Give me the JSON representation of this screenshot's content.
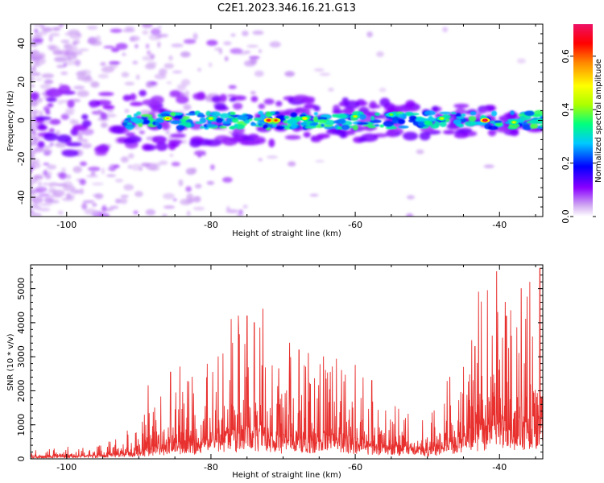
{
  "title": "C2E1.2023.346.16.21.G13",
  "chart_data": [
    {
      "type": "heatmap",
      "title": "C2E1.2023.346.16.21.G13",
      "xlabel": "Height of straight line (km)",
      "ylabel": "Frequency (Hz)",
      "xlim": [
        -105,
        -34
      ],
      "ylim": [
        -50,
        50
      ],
      "xticks": [
        "-100",
        "-80",
        "-60",
        "-40"
      ],
      "yticks": [
        "-40",
        "-20",
        "0",
        "20",
        "40"
      ],
      "colorbar": {
        "label": "Normalized spectral amplitude",
        "range": [
          0,
          0.72
        ],
        "ticks": [
          "0.0",
          "0.2",
          "0.4",
          "0.6"
        ]
      },
      "band": {
        "center_hz": 0,
        "half_width_hz": 5
      },
      "peaks": [
        {
          "x": -86,
          "y": 1,
          "z": 0.55
        },
        {
          "x": -80,
          "y": 1,
          "z": 0.45
        },
        {
          "x": -72,
          "y": 0,
          "z": 0.68
        },
        {
          "x": -71,
          "y": 0,
          "z": 0.62
        },
        {
          "x": -67,
          "y": 1,
          "z": 0.5
        },
        {
          "x": -60,
          "y": 2,
          "z": 0.45
        },
        {
          "x": -55,
          "y": 3,
          "z": 0.4
        },
        {
          "x": -48,
          "y": 1,
          "z": 0.45
        },
        {
          "x": -42,
          "y": 0,
          "z": 0.72
        },
        {
          "x": -38,
          "y": -1,
          "z": 0.45
        }
      ]
    },
    {
      "type": "line",
      "xlabel": "Height of straight line (km)",
      "ylabel": "SNR (10 * v/v)",
      "xlim": [
        -105,
        -34
      ],
      "ylim": [
        0,
        5700
      ],
      "xticks": [
        "-100",
        "-80",
        "-60",
        "-40"
      ],
      "yticks": [
        "0",
        "1000",
        "2000",
        "3000",
        "4000",
        "5000"
      ],
      "color": "#e8312f",
      "envelope": {
        "x": [
          -105,
          -98,
          -95,
          -93,
          -90,
          -88,
          -85,
          -82,
          -79,
          -77,
          -75,
          -73,
          -71,
          -68,
          -65,
          -62,
          -58,
          -55,
          -52,
          -50,
          -47,
          -45,
          -43,
          -41,
          -39,
          -37,
          -36,
          -35,
          -34
        ],
        "y": [
          300,
          400,
          500,
          700,
          1100,
          1700,
          2200,
          2400,
          3700,
          3800,
          4000,
          4000,
          2800,
          3300,
          3100,
          3000,
          2300,
          1600,
          1500,
          1300,
          2400,
          3000,
          4500,
          5200,
          4600,
          5000,
          5100,
          5200,
          5600
        ]
      },
      "spikes": [
        {
          "x": -88.7,
          "y": 2150
        },
        {
          "x": -85.6,
          "y": 2550
        },
        {
          "x": -84.3,
          "y": 2700
        },
        {
          "x": -82.6,
          "y": 2400
        },
        {
          "x": -79.0,
          "y": 3000
        },
        {
          "x": -77.2,
          "y": 4100
        },
        {
          "x": -76.2,
          "y": 4200
        },
        {
          "x": -75.0,
          "y": 4200
        },
        {
          "x": -74.0,
          "y": 4000
        },
        {
          "x": -72.8,
          "y": 4400
        },
        {
          "x": -70.6,
          "y": 2650
        },
        {
          "x": -69.1,
          "y": 3400
        },
        {
          "x": -67.8,
          "y": 3200
        },
        {
          "x": -66.5,
          "y": 3100
        },
        {
          "x": -64.4,
          "y": 3000
        },
        {
          "x": -61.9,
          "y": 2600
        },
        {
          "x": -60.0,
          "y": 2750
        },
        {
          "x": -57.7,
          "y": 2300
        },
        {
          "x": -46.9,
          "y": 2400
        },
        {
          "x": -43.4,
          "y": 3300
        },
        {
          "x": -42.9,
          "y": 4900
        },
        {
          "x": -40.4,
          "y": 5500
        },
        {
          "x": -39.2,
          "y": 4600
        },
        {
          "x": -37.0,
          "y": 5000
        },
        {
          "x": -35.8,
          "y": 5200
        },
        {
          "x": -34.4,
          "y": 5600
        }
      ]
    }
  ]
}
